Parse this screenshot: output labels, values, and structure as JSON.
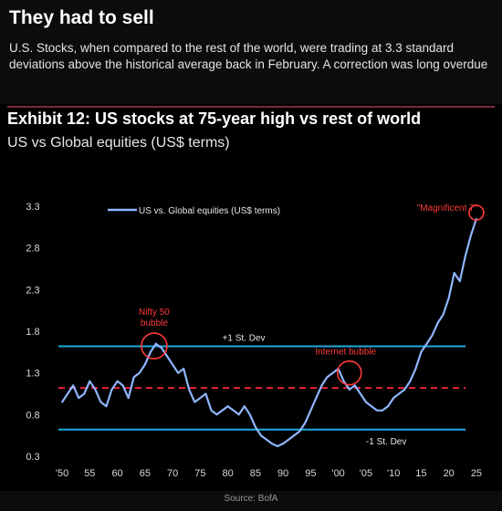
{
  "page": {
    "headline": "They had to sell",
    "subheadline": "U.S. Stocks, when compared to the rest of the world, were trading at 3.3 standard deviations above the historical average back in February. A correction was long overdue",
    "source": "Source: BofA"
  },
  "colors": {
    "series": "#8fb6ff",
    "std_lines": "#22aadd",
    "mean_line": "#e8253a",
    "annotation": "#ff3b3b",
    "background": "#000000"
  },
  "chart_data": {
    "type": "line",
    "title": "Exhibit 12: US stocks at 75-year high vs rest of world",
    "subtitle": "US vs Global equities (US$ terms)",
    "xlim": [
      1949,
      2026
    ],
    "ylim": [
      0.3,
      3.3
    ],
    "x_ticks": [
      1950,
      1955,
      1960,
      1965,
      1970,
      1975,
      1980,
      1985,
      1990,
      1995,
      2000,
      2005,
      2010,
      2015,
      2020,
      2025
    ],
    "x_tick_labels": [
      "'50",
      "55",
      "60",
      "65",
      "70",
      "75",
      "80",
      "85",
      "90",
      "95",
      "'00",
      "'05",
      "'10",
      "15",
      "20",
      "25"
    ],
    "y_ticks": [
      0.3,
      0.8,
      1.3,
      1.8,
      2.3,
      2.8,
      3.3
    ],
    "y_tick_labels": [
      "0.3",
      "0.8",
      "1.3",
      "1.8",
      "2.3",
      "2.8",
      "3.3"
    ],
    "legend": {
      "label": "US vs. Global equities (US$ terms)",
      "position": "top-left"
    },
    "reference_lines": [
      {
        "label": "+1 St. Dev",
        "y": 1.62,
        "style": "solid"
      },
      {
        "label": "",
        "y": 1.12,
        "style": "dashed"
      },
      {
        "label": "-1 St. Dev",
        "y": 0.62,
        "style": "solid"
      }
    ],
    "annotations": [
      {
        "label": "Nifty 50 bubble",
        "x": 1967,
        "y": 1.58
      },
      {
        "label": "Internet bubble",
        "x": 2002,
        "y": 1.3
      },
      {
        "label": "\"Magnificent 7\"",
        "x": 2025,
        "y": 3.2
      }
    ],
    "series": [
      {
        "name": "US vs. Global equities (US$ terms)",
        "x": [
          1950,
          1951,
          1952,
          1953,
          1954,
          1955,
          1956,
          1957,
          1958,
          1959,
          1960,
          1961,
          1962,
          1963,
          1964,
          1965,
          1966,
          1967,
          1968,
          1969,
          1970,
          1971,
          1972,
          1973,
          1974,
          1975,
          1976,
          1977,
          1978,
          1979,
          1980,
          1981,
          1982,
          1983,
          1984,
          1985,
          1986,
          1987,
          1988,
          1989,
          1990,
          1991,
          1992,
          1993,
          1994,
          1995,
          1996,
          1997,
          1998,
          1999,
          2000,
          2001,
          2002,
          2003,
          2004,
          2005,
          2006,
          2007,
          2008,
          2009,
          2010,
          2011,
          2012,
          2013,
          2014,
          2015,
          2016,
          2017,
          2018,
          2019,
          2020,
          2021,
          2022,
          2023,
          2024,
          2025
        ],
        "values": [
          0.95,
          1.05,
          1.15,
          1.0,
          1.05,
          1.2,
          1.1,
          0.95,
          0.9,
          1.1,
          1.2,
          1.15,
          1.0,
          1.25,
          1.3,
          1.4,
          1.55,
          1.65,
          1.6,
          1.5,
          1.4,
          1.3,
          1.35,
          1.1,
          0.95,
          1.0,
          1.05,
          0.85,
          0.8,
          0.85,
          0.9,
          0.85,
          0.8,
          0.9,
          0.8,
          0.65,
          0.55,
          0.5,
          0.45,
          0.42,
          0.45,
          0.5,
          0.55,
          0.6,
          0.7,
          0.85,
          1.0,
          1.15,
          1.25,
          1.3,
          1.35,
          1.2,
          1.1,
          1.15,
          1.05,
          0.95,
          0.9,
          0.85,
          0.85,
          0.9,
          1.0,
          1.05,
          1.1,
          1.2,
          1.35,
          1.55,
          1.65,
          1.75,
          1.9,
          2.0,
          2.2,
          2.5,
          2.4,
          2.7,
          2.95,
          3.15
        ]
      }
    ]
  }
}
